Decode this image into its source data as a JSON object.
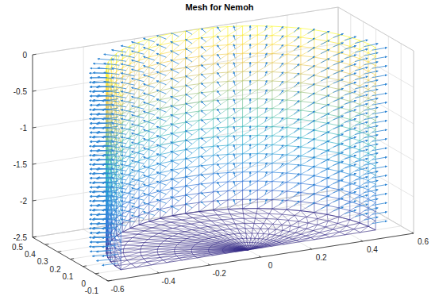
{
  "chart_data": {
    "type": "mesh3d",
    "title": "Mesh for Nemoh",
    "xlim": [
      -0.6,
      0.6
    ],
    "xticks": [
      -0.6,
      -0.4,
      -0.2,
      0,
      0.2,
      0.4,
      0.6
    ],
    "ylim": [
      -0.1,
      0.5
    ],
    "yticks": [
      -0.1,
      0,
      0.1,
      0.2,
      0.3,
      0.4,
      0.5
    ],
    "zlim": [
      -2.5,
      0
    ],
    "zticks": [
      -2.5,
      -2,
      -1.5,
      -1,
      -0.5,
      0
    ],
    "grid": true,
    "mesh": {
      "radius": 0.5,
      "z_levels": [
        0,
        -0.125,
        -0.25,
        -0.375,
        -0.5,
        -0.625,
        -0.75,
        -0.875,
        -1,
        -1.125,
        -1.25,
        -1.375,
        -1.5,
        -1.625,
        -1.75,
        -1.875,
        -2,
        -2.125,
        -2.25,
        -2.375,
        -2.5
      ],
      "theta_deg": [
        0,
        6,
        12,
        18,
        24,
        30,
        36,
        42,
        48,
        54,
        60,
        66,
        72,
        78,
        84,
        90,
        96,
        102,
        108,
        114,
        120,
        126,
        132,
        138,
        144,
        150,
        156,
        162,
        168,
        174,
        180
      ],
      "bottom_radii": [
        0.02,
        0.05,
        0.09,
        0.14,
        0.2,
        0.26,
        0.32,
        0.38,
        0.44,
        0.5
      ]
    }
  }
}
